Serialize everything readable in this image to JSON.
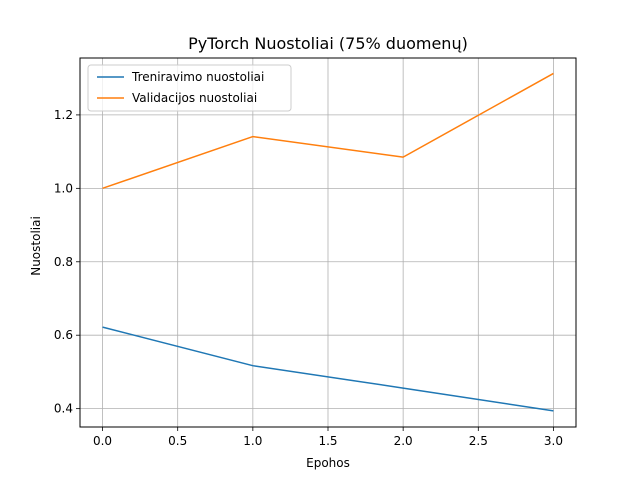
{
  "chart_data": {
    "type": "line",
    "title": "PyTorch Nuostoliai (75% duomenų)",
    "xlabel": "Epohos",
    "ylabel": "Nuostoliai",
    "xlim": [
      -0.15,
      3.15
    ],
    "ylim": [
      0.35,
      1.355
    ],
    "xticks": [
      0.0,
      0.5,
      1.0,
      1.5,
      2.0,
      2.5,
      3.0
    ],
    "xtick_labels": [
      "0.0",
      "0.5",
      "1.0",
      "1.5",
      "2.0",
      "2.5",
      "3.0"
    ],
    "yticks": [
      0.4,
      0.6,
      0.8,
      1.0,
      1.2
    ],
    "ytick_labels": [
      "0.4",
      "0.6",
      "0.8",
      "1.0",
      "1.2"
    ],
    "grid": true,
    "legend_position": "upper-left",
    "x": [
      0,
      1,
      2,
      3
    ],
    "series": [
      {
        "name": "Treniravimo nuostoliai",
        "color": "#1f77b4",
        "values": [
          0.622,
          0.517,
          0.456,
          0.394
        ]
      },
      {
        "name": "Validacijos nuostoliai",
        "color": "#ff7f0e",
        "values": [
          1.0,
          1.141,
          1.085,
          1.313
        ]
      }
    ]
  }
}
